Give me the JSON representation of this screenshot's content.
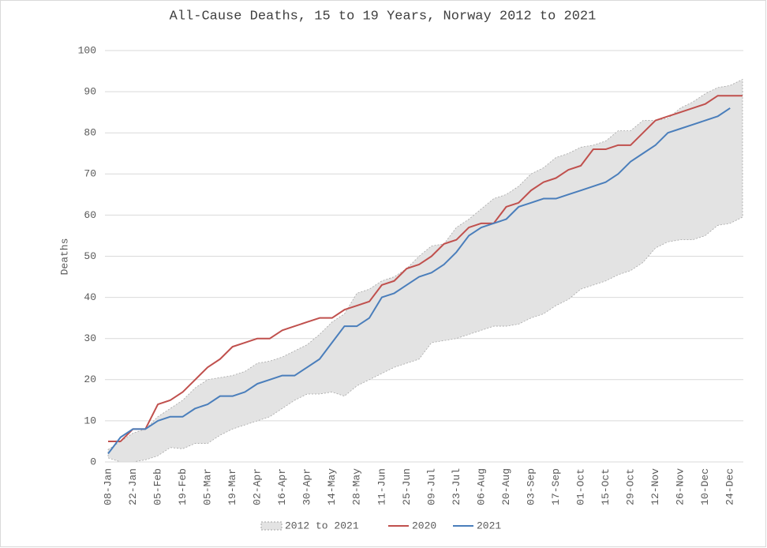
{
  "chart_data": {
    "type": "line",
    "title": "All-Cause Deaths, 15 to 19 Years, Norway 2012 to 2021",
    "y_label": "Deaths",
    "categories": [
      "08-Jan",
      null,
      "22-Jan",
      null,
      "05-Feb",
      null,
      "19-Feb",
      null,
      "05-Mar",
      null,
      "19-Mar",
      null,
      "02-Apr",
      null,
      "16-Apr",
      null,
      "30-Apr",
      null,
      "14-May",
      null,
      "28-May",
      null,
      "11-Jun",
      null,
      "25-Jun",
      null,
      "09-Jul",
      null,
      "23-Jul",
      null,
      "06-Aug",
      null,
      "20-Aug",
      null,
      "03-Sep",
      null,
      "17-Sep",
      null,
      "01-Oct",
      null,
      "15-Oct",
      null,
      "29-Oct",
      null,
      "12-Nov",
      null,
      "26-Nov",
      null,
      "10-Dec",
      null,
      "24-Dec",
      null
    ],
    "band": {
      "name": "2012 to 2021",
      "color": "#e3e3e3",
      "low": [
        1,
        0,
        0,
        0.5,
        1.5,
        3.5,
        3.2,
        4.5,
        4.5,
        6.5,
        8,
        9,
        10,
        11,
        13,
        15,
        16.5,
        16.5,
        17,
        16,
        18.5,
        20,
        21.5,
        23,
        24,
        25,
        29,
        29.5,
        30,
        31,
        32,
        33,
        33,
        33.5,
        35,
        36,
        38,
        39.5,
        42,
        43,
        44,
        45.5,
        46.5,
        48.5,
        52,
        53.5,
        54,
        54,
        55,
        57.5,
        58,
        59.5
      ],
      "high": [
        3,
        5,
        7,
        8,
        11,
        13,
        15,
        18,
        20,
        20.5,
        21,
        22,
        24,
        24.5,
        25.5,
        27,
        28.5,
        31,
        34,
        36,
        41,
        42,
        44,
        45,
        47,
        50,
        52.5,
        53,
        57,
        59,
        61.5,
        64,
        65,
        67,
        70,
        71.5,
        74,
        75,
        76.5,
        77,
        78,
        80.5,
        80.5,
        83,
        83,
        83.5,
        86,
        87.5,
        89.5,
        91,
        91.5,
        93
      ]
    },
    "series": [
      {
        "name": "2020",
        "color": "#c0504d",
        "values": [
          5,
          5,
          8,
          8,
          14,
          15,
          17,
          20,
          23,
          25,
          28,
          29,
          30,
          30,
          32,
          33,
          34,
          35,
          35,
          37,
          38,
          39,
          43,
          44,
          47,
          48,
          50,
          53,
          54,
          57,
          58,
          58,
          62,
          63,
          66,
          68,
          69,
          71,
          72,
          76,
          76,
          77,
          77,
          80,
          83,
          84,
          85,
          86,
          87,
          89,
          89,
          89
        ]
      },
      {
        "name": "2021",
        "color": "#4a7ebb",
        "values": [
          2,
          6,
          8,
          8,
          10,
          11,
          11,
          13,
          14,
          16,
          16,
          17,
          19,
          20,
          21,
          21,
          23,
          25,
          29,
          33,
          33,
          35,
          40,
          41,
          43,
          45,
          46,
          48,
          51,
          55,
          57,
          58,
          59,
          62,
          63,
          64,
          64,
          65,
          66,
          67,
          68,
          70,
          73,
          75,
          77,
          80,
          81,
          82,
          83,
          84,
          86,
          null
        ]
      }
    ],
    "ylim": [
      0,
      100
    ],
    "yticks": [
      0,
      10,
      20,
      30,
      40,
      50,
      60,
      70,
      80,
      90,
      100
    ],
    "grid": true,
    "legend": "bottom"
  }
}
